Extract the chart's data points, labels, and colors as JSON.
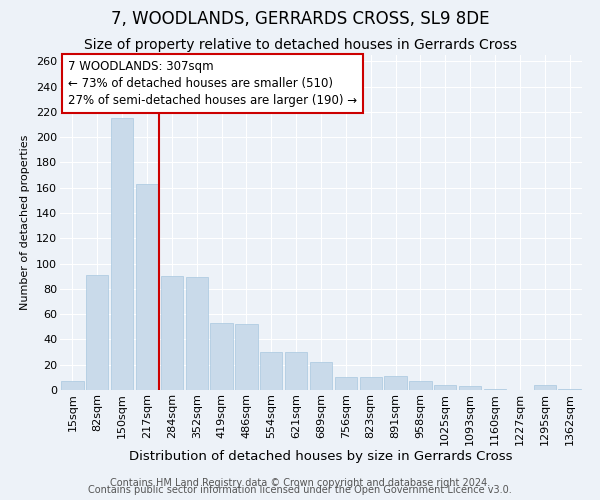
{
  "title": "7, WOODLANDS, GERRARDS CROSS, SL9 8DE",
  "subtitle": "Size of property relative to detached houses in Gerrards Cross",
  "xlabel": "Distribution of detached houses by size in Gerrards Cross",
  "ylabel": "Number of detached properties",
  "categories": [
    "15sqm",
    "82sqm",
    "150sqm",
    "217sqm",
    "284sqm",
    "352sqm",
    "419sqm",
    "486sqm",
    "554sqm",
    "621sqm",
    "689sqm",
    "756sqm",
    "823sqm",
    "891sqm",
    "958sqm",
    "1025sqm",
    "1093sqm",
    "1160sqm",
    "1227sqm",
    "1295sqm",
    "1362sqm"
  ],
  "values": [
    7,
    91,
    215,
    163,
    90,
    89,
    53,
    52,
    30,
    30,
    22,
    10,
    10,
    11,
    7,
    4,
    3,
    1,
    0,
    4,
    1
  ],
  "bar_color": "#c9daea",
  "bar_edge_color": "#a8c8e0",
  "annotation_text": "7 WOODLANDS: 307sqm\n← 73% of detached houses are smaller (510)\n27% of semi-detached houses are larger (190) →",
  "annotation_box_color": "white",
  "annotation_box_edge_color": "#cc0000",
  "vline_color": "#cc0000",
  "vline_x": 3.5,
  "ylim": [
    0,
    265
  ],
  "yticks": [
    0,
    20,
    40,
    60,
    80,
    100,
    120,
    140,
    160,
    180,
    200,
    220,
    240,
    260
  ],
  "footer_line1": "Contains HM Land Registry data © Crown copyright and database right 2024.",
  "footer_line2": "Contains public sector information licensed under the Open Government Licence v3.0.",
  "bg_color": "#edf2f8",
  "plot_bg_color": "#edf2f8",
  "grid_color": "white",
  "title_fontsize": 12,
  "subtitle_fontsize": 10,
  "xlabel_fontsize": 9.5,
  "ylabel_fontsize": 8,
  "tick_fontsize": 8,
  "annotation_fontsize": 8.5,
  "footer_fontsize": 7
}
